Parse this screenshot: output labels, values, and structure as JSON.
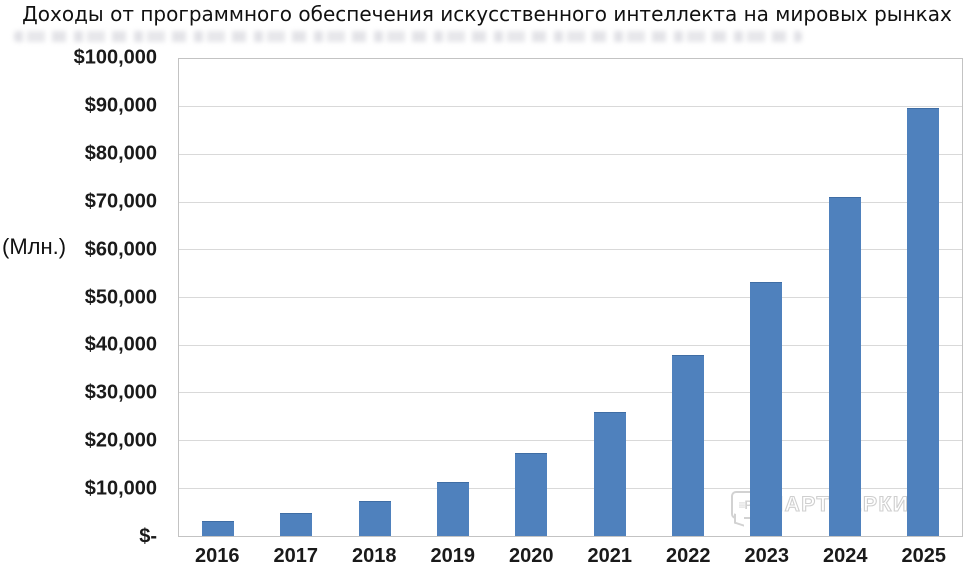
{
  "watermark": {
    "text": "ПАРТНЕРКИН",
    "logo_glyph": "≡Р"
  },
  "colors": {
    "bar": "#4f81bd",
    "gridline": "#d9d9d9",
    "axis_text": "#1a1a1a",
    "watermark": "#cfcfcf"
  },
  "chart_data": {
    "type": "bar",
    "title": "Доходы от программного обеспечения искусственного интеллекта на мировых рынках",
    "xlabel": "",
    "ylabel": "(Млн.)",
    "categories": [
      "2016",
      "2017",
      "2018",
      "2019",
      "2020",
      "2021",
      "2022",
      "2023",
      "2024",
      "2025"
    ],
    "values": [
      3200,
      4800,
      7300,
      11300,
      17300,
      26000,
      38000,
      53200,
      71000,
      89800
    ],
    "ylim": [
      0,
      100000
    ],
    "ytick_step": 10000,
    "ytick_labels": [
      "$100,000",
      "$90,000",
      "$80,000",
      "$70,000",
      "$60,000",
      "$50,000",
      "$40,000",
      "$30,000",
      "$20,000",
      "$10,000",
      "$-"
    ],
    "grid": true,
    "legend": false,
    "bar_color": "#4f81bd"
  }
}
